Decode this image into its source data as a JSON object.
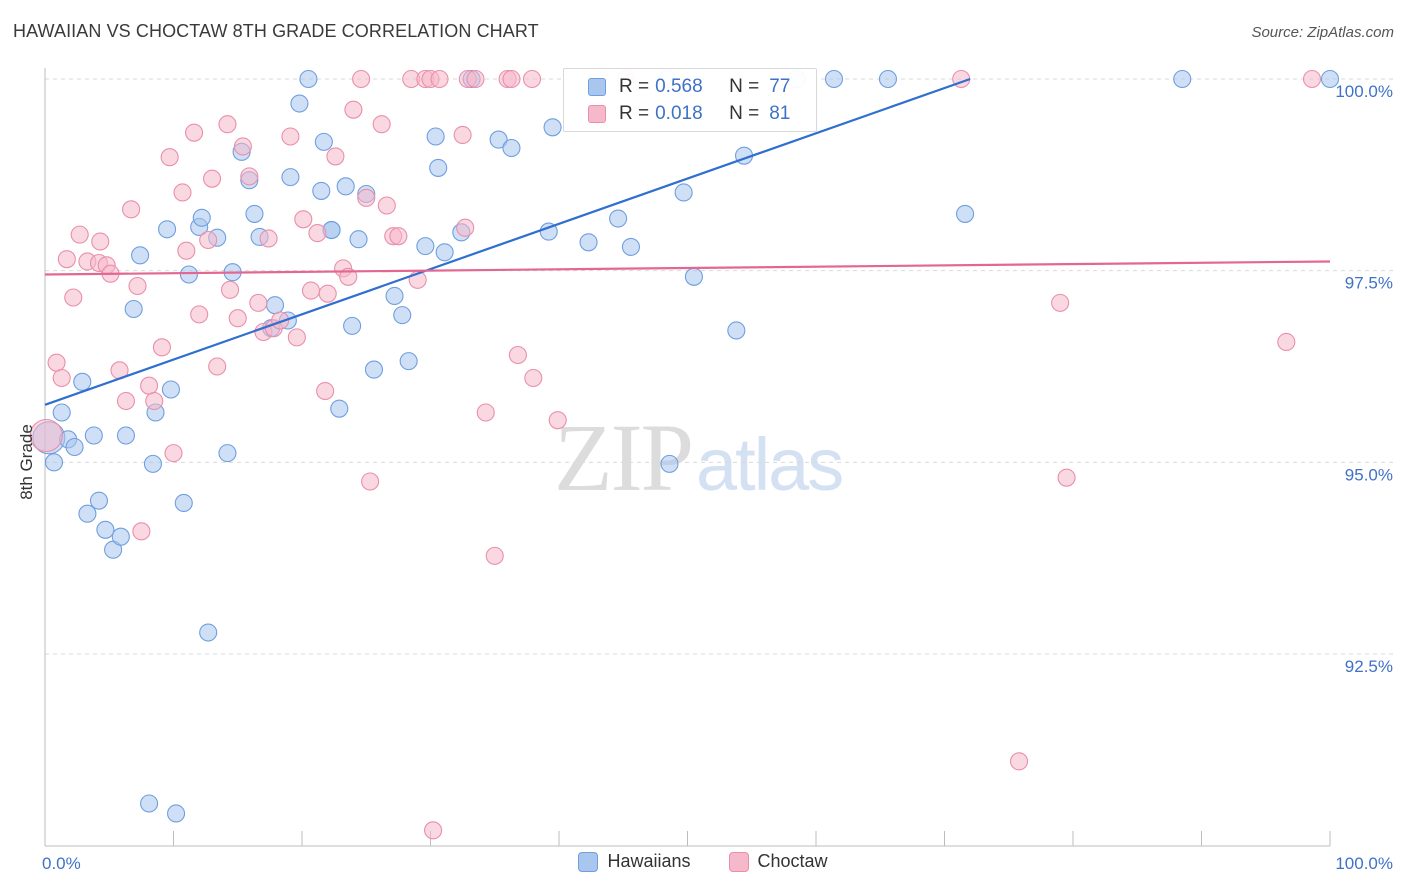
{
  "title": "HAWAIIAN VS CHOCTAW 8TH GRADE CORRELATION CHART",
  "source": "Source: ZipAtlas.com",
  "watermark": {
    "part1": "ZIP",
    "part2": "atlas"
  },
  "legend": {
    "rows": [
      {
        "r_label": "R =",
        "r_value": "0.568",
        "n_label": "N =",
        "n_value": "77"
      },
      {
        "r_label": "R =",
        "r_value": "0.018",
        "n_label": "N =",
        "n_value": "81"
      }
    ]
  },
  "bottom_legend": {
    "hawaiians": "Hawaiians",
    "choctaw": "Choctaw"
  },
  "colors": {
    "hawaiian_fill": "#a8c6ee",
    "hawaiian_stroke": "#6f9fdf",
    "hawaiian_line": "#2f6fcf",
    "choctaw_fill": "#f6b8cb",
    "choctaw_stroke": "#ea8fab",
    "choctaw_line": "#e26792",
    "tick_text": "#3f72c7",
    "grid": "#d9d9d9"
  },
  "chart_data": {
    "type": "scatter",
    "title": "HAWAIIAN VS CHOCTAW 8TH GRADE CORRELATION CHART",
    "xlabel": "",
    "ylabel": "8th Grade",
    "xlim": [
      0,
      100
    ],
    "ylim": [
      90.2,
      100.4
    ],
    "x_tick_labels": [
      "0.0%",
      "100.0%"
    ],
    "y_ticks": [
      92.5,
      95.0,
      97.5,
      100.0
    ],
    "y_tick_labels": [
      "92.5%",
      "95.0%",
      "97.5%",
      "100.0%"
    ],
    "grid": "horizontal dashed",
    "legend_position": "top-center",
    "series": [
      {
        "name": "Hawaiians",
        "R": 0.568,
        "N": 77,
        "trend": {
          "x": [
            0,
            72
          ],
          "y": [
            95.75,
            100.0
          ]
        },
        "points": [
          [
            0.3,
            95.32
          ],
          [
            0.7,
            95.0
          ],
          [
            1.3,
            95.65
          ],
          [
            1.8,
            95.3
          ],
          [
            2.3,
            95.2
          ],
          [
            2.9,
            96.05
          ],
          [
            3.3,
            94.33
          ],
          [
            3.8,
            95.35
          ],
          [
            4.2,
            94.5
          ],
          [
            4.7,
            94.12
          ],
          [
            5.3,
            93.86
          ],
          [
            5.9,
            94.03
          ],
          [
            6.3,
            95.35
          ],
          [
            6.9,
            97.0
          ],
          [
            7.4,
            97.7
          ],
          [
            8.1,
            90.55
          ],
          [
            8.4,
            94.98
          ],
          [
            8.6,
            95.65
          ],
          [
            9.5,
            98.04
          ],
          [
            9.8,
            95.95
          ],
          [
            10.8,
            94.47
          ],
          [
            11.2,
            97.45
          ],
          [
            12.0,
            98.07
          ],
          [
            12.2,
            98.19
          ],
          [
            12.7,
            92.78
          ],
          [
            13.4,
            97.93
          ],
          [
            14.2,
            95.12
          ],
          [
            14.6,
            97.48
          ],
          [
            15.3,
            99.05
          ],
          [
            15.9,
            98.68
          ],
          [
            16.3,
            98.24
          ],
          [
            16.7,
            97.94
          ],
          [
            17.6,
            96.75
          ],
          [
            17.9,
            97.05
          ],
          [
            18.9,
            96.85
          ],
          [
            19.1,
            98.72
          ],
          [
            19.8,
            99.68
          ],
          [
            20.5,
            100.0
          ],
          [
            21.5,
            98.54
          ],
          [
            21.7,
            99.18
          ],
          [
            22.3,
            98.03
          ],
          [
            22.9,
            95.7
          ],
          [
            23.4,
            98.6
          ],
          [
            23.9,
            96.78
          ],
          [
            24.4,
            97.91
          ],
          [
            25.0,
            98.5
          ],
          [
            25.6,
            96.21
          ],
          [
            27.2,
            97.17
          ],
          [
            27.8,
            96.92
          ],
          [
            28.3,
            96.32
          ],
          [
            29.6,
            97.82
          ],
          [
            30.4,
            99.25
          ],
          [
            30.6,
            98.84
          ],
          [
            31.1,
            97.74
          ],
          [
            32.4,
            98.0
          ],
          [
            33.2,
            100.0
          ],
          [
            35.3,
            99.21
          ],
          [
            36.3,
            99.1
          ],
          [
            39.2,
            98.01
          ],
          [
            39.5,
            99.37
          ],
          [
            42.3,
            97.87
          ],
          [
            44.6,
            98.18
          ],
          [
            45.6,
            97.81
          ],
          [
            48.4,
            100.0
          ],
          [
            48.6,
            94.98
          ],
          [
            49.7,
            98.52
          ],
          [
            50.5,
            97.42
          ],
          [
            53.8,
            96.72
          ],
          [
            54.4,
            99.0
          ],
          [
            61.4,
            100.0
          ],
          [
            65.6,
            100.0
          ],
          [
            71.6,
            98.24
          ],
          [
            88.5,
            100.0
          ],
          [
            100.0,
            100.0
          ],
          [
            10.2,
            90.42
          ],
          [
            22.3,
            98.03
          ],
          [
            58.5,
            100.0
          ]
        ]
      },
      {
        "name": "Choctaw",
        "R": 0.018,
        "N": 81,
        "trend": {
          "x": [
            0,
            100
          ],
          "y": [
            97.45,
            97.62
          ]
        },
        "points": [
          [
            0.1,
            95.35
          ],
          [
            0.9,
            96.3
          ],
          [
            1.3,
            96.1
          ],
          [
            1.7,
            97.65
          ],
          [
            2.2,
            97.15
          ],
          [
            2.7,
            97.97
          ],
          [
            3.3,
            97.62
          ],
          [
            4.2,
            97.6
          ],
          [
            4.3,
            97.88
          ],
          [
            4.8,
            97.57
          ],
          [
            5.1,
            97.46
          ],
          [
            5.8,
            96.2
          ],
          [
            6.3,
            95.8
          ],
          [
            6.7,
            98.3
          ],
          [
            7.2,
            97.3
          ],
          [
            7.5,
            94.1
          ],
          [
            8.1,
            96.0
          ],
          [
            8.5,
            95.8
          ],
          [
            9.1,
            96.5
          ],
          [
            9.7,
            98.98
          ],
          [
            10.0,
            95.12
          ],
          [
            10.7,
            98.52
          ],
          [
            11.0,
            97.76
          ],
          [
            11.6,
            99.3
          ],
          [
            12.0,
            96.93
          ],
          [
            12.7,
            97.9
          ],
          [
            13.0,
            98.7
          ],
          [
            13.4,
            96.25
          ],
          [
            14.2,
            99.41
          ],
          [
            14.4,
            97.25
          ],
          [
            15.0,
            96.88
          ],
          [
            15.4,
            99.12
          ],
          [
            15.9,
            98.73
          ],
          [
            16.6,
            97.08
          ],
          [
            17.0,
            96.7
          ],
          [
            17.4,
            97.92
          ],
          [
            17.8,
            96.75
          ],
          [
            18.3,
            96.85
          ],
          [
            19.1,
            99.25
          ],
          [
            19.6,
            96.63
          ],
          [
            20.1,
            98.17
          ],
          [
            20.7,
            97.24
          ],
          [
            21.2,
            97.99
          ],
          [
            21.8,
            95.93
          ],
          [
            22.0,
            97.2
          ],
          [
            22.6,
            98.99
          ],
          [
            23.2,
            97.53
          ],
          [
            23.6,
            97.42
          ],
          [
            24.0,
            99.6
          ],
          [
            24.6,
            100.0
          ],
          [
            25.0,
            98.45
          ],
          [
            25.3,
            94.75
          ],
          [
            26.2,
            99.41
          ],
          [
            26.6,
            98.35
          ],
          [
            27.1,
            97.95
          ],
          [
            27.5,
            97.95
          ],
          [
            28.5,
            100.0
          ],
          [
            29.0,
            97.38
          ],
          [
            29.6,
            100.0
          ],
          [
            30.0,
            100.0
          ],
          [
            30.2,
            90.2
          ],
          [
            30.7,
            100.0
          ],
          [
            32.5,
            99.27
          ],
          [
            32.7,
            98.06
          ],
          [
            32.9,
            100.0
          ],
          [
            34.3,
            95.65
          ],
          [
            35.0,
            93.78
          ],
          [
            36.0,
            100.0
          ],
          [
            36.3,
            100.0
          ],
          [
            36.8,
            96.4
          ],
          [
            37.9,
            100.0
          ],
          [
            38.0,
            96.1
          ],
          [
            39.9,
            95.55
          ],
          [
            45.2,
            100.0
          ],
          [
            71.3,
            100.0
          ],
          [
            79.0,
            97.08
          ],
          [
            79.5,
            94.8
          ],
          [
            75.8,
            91.1
          ],
          [
            96.6,
            96.57
          ],
          [
            98.6,
            100.0
          ],
          [
            33.5,
            100.0
          ]
        ]
      }
    ]
  }
}
